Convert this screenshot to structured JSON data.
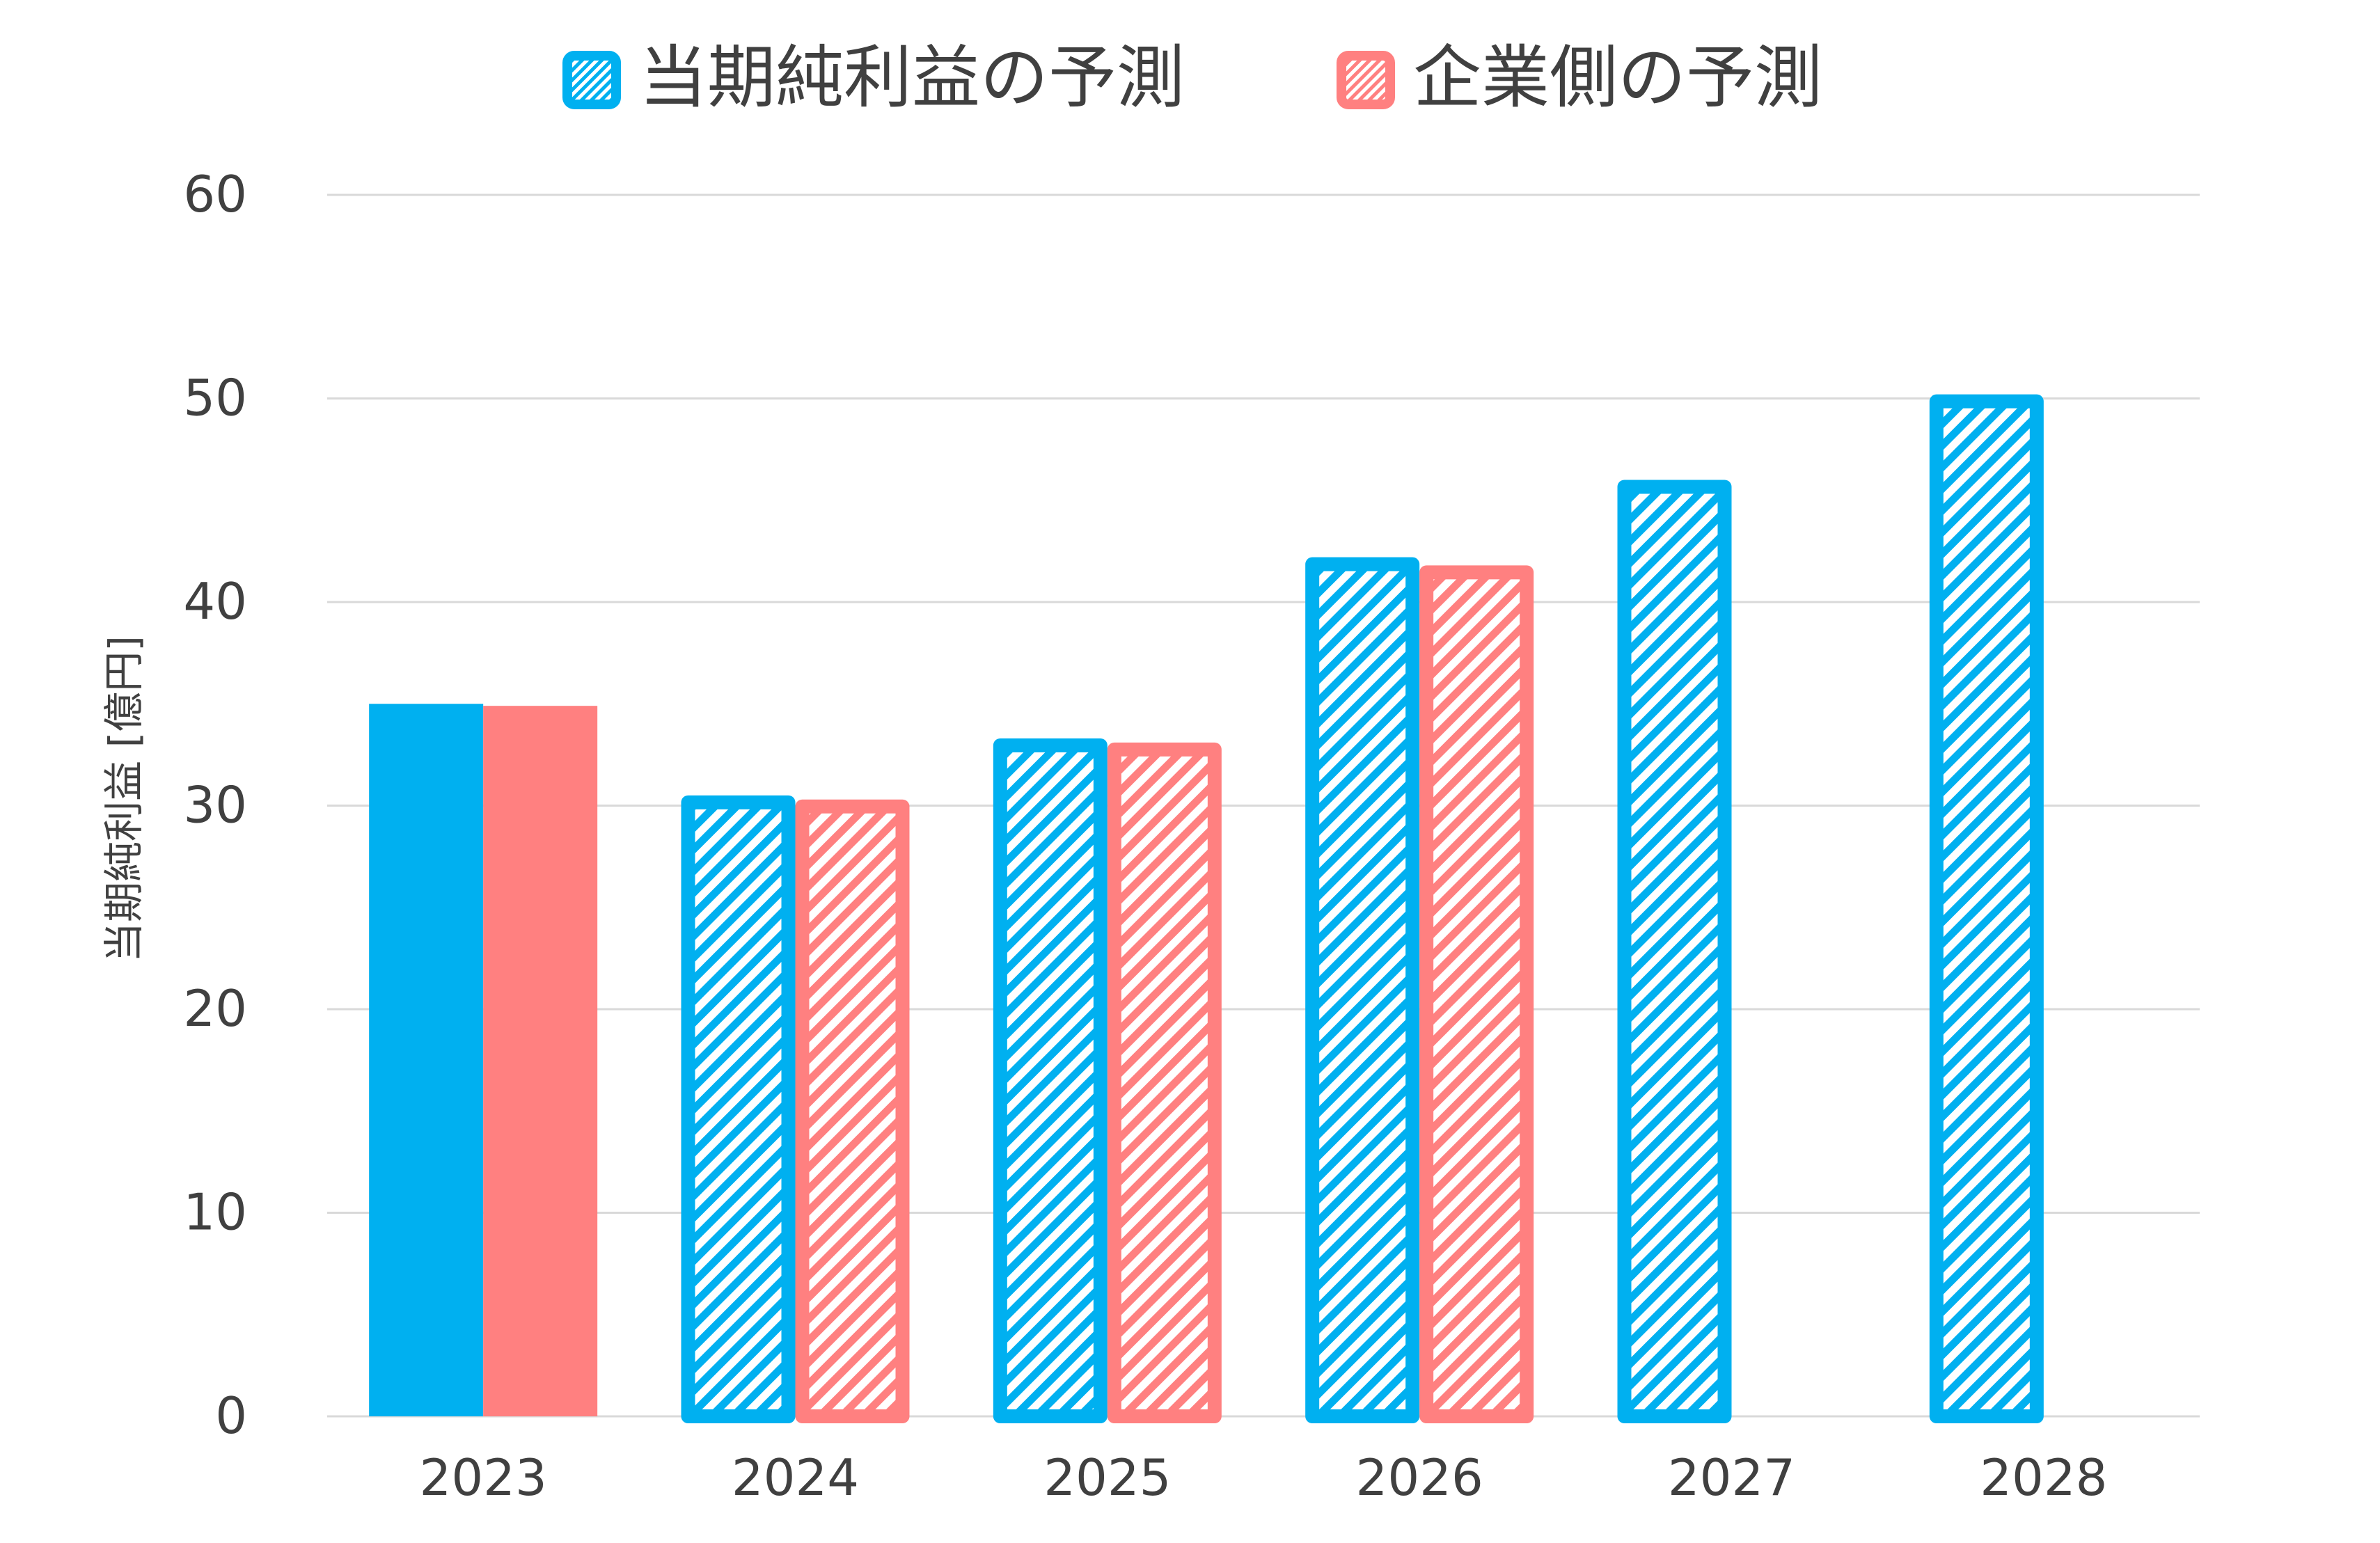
{
  "chart_data": {
    "type": "bar",
    "title": "",
    "xlabel": "",
    "ylabel": "当期純利益 [億円]",
    "categories": [
      "2023",
      "2024",
      "2025",
      "2026",
      "2027",
      "2028"
    ],
    "series": [
      {
        "name": "当期純利益の予測",
        "color": "#00B0F0",
        "values": [
          35.0,
          30.5,
          33.3,
          42.2,
          46.0,
          50.2
        ],
        "fill": [
          "solid",
          "hatched",
          "hatched",
          "hatched",
          "hatched",
          "hatched"
        ]
      },
      {
        "name": "企業側の予測",
        "color": "#FF8080",
        "values": [
          34.9,
          30.3,
          33.1,
          41.8,
          null,
          null
        ],
        "fill": [
          "solid",
          "hatched",
          "hatched",
          "hatched",
          "hatched",
          "hatched"
        ]
      }
    ],
    "ylim": [
      0,
      60
    ],
    "yticks": [
      0,
      10,
      20,
      30,
      40,
      50,
      60
    ],
    "grid": true,
    "legend_position": "top"
  }
}
